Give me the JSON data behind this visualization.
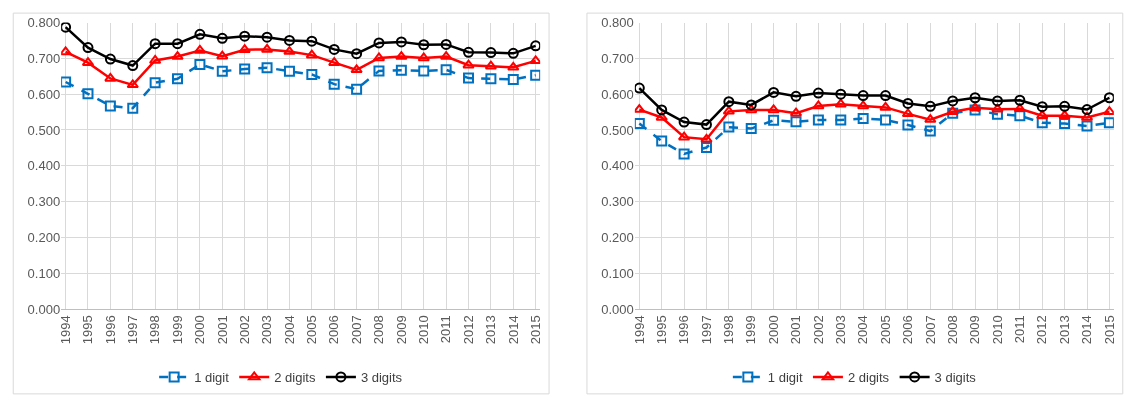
{
  "chart_data": [
    {
      "type": "line",
      "categories": [
        "1994",
        "1995",
        "1996",
        "1997",
        "1998",
        "1999",
        "2000",
        "2001",
        "2002",
        "2003",
        "2004",
        "2005",
        "2006",
        "2007",
        "2008",
        "2009",
        "2010",
        "2011",
        "2012",
        "2013",
        "2014",
        "2015"
      ],
      "ylim": [
        0,
        0.8
      ],
      "yticks": [
        {
          "value": 0,
          "label": "0.000"
        },
        {
          "value": 0.1,
          "label": "0.100"
        },
        {
          "value": 0.2,
          "label": "0.200"
        },
        {
          "value": 0.3,
          "label": "0.300"
        },
        {
          "value": 0.4,
          "label": "0.400"
        },
        {
          "value": 0.5,
          "label": "0.500"
        },
        {
          "value": 0.6,
          "label": "0.600"
        },
        {
          "value": 0.7,
          "label": "0.700"
        },
        {
          "value": 0.8,
          "label": "0.800"
        }
      ],
      "grid": true,
      "legend": "bottom",
      "series": [
        {
          "name": "1 digit",
          "color": "#0070c0",
          "marker": "square",
          "line_style": "dashed",
          "values": [
            0.634,
            0.601,
            0.567,
            0.561,
            0.632,
            0.643,
            0.683,
            0.664,
            0.67,
            0.674,
            0.664,
            0.655,
            0.628,
            0.614,
            0.665,
            0.667,
            0.665,
            0.668,
            0.645,
            0.643,
            0.641,
            0.653
          ]
        },
        {
          "name": "2 digits",
          "color": "#ff0000",
          "marker": "triangle",
          "line_style": "solid",
          "values": [
            0.718,
            0.688,
            0.644,
            0.626,
            0.694,
            0.705,
            0.722,
            0.706,
            0.724,
            0.725,
            0.719,
            0.709,
            0.688,
            0.668,
            0.701,
            0.705,
            0.701,
            0.705,
            0.681,
            0.678,
            0.675,
            0.693
          ]
        },
        {
          "name": "3 digits",
          "color": "#000000",
          "marker": "circle",
          "line_style": "solid",
          "values": [
            0.787,
            0.73,
            0.698,
            0.68,
            0.741,
            0.741,
            0.767,
            0.756,
            0.762,
            0.759,
            0.75,
            0.748,
            0.725,
            0.713,
            0.743,
            0.746,
            0.738,
            0.739,
            0.717,
            0.716,
            0.714,
            0.735
          ]
        }
      ]
    },
    {
      "type": "line",
      "categories": [
        "1994",
        "1995",
        "1996",
        "1997",
        "1998",
        "1999",
        "2000",
        "2001",
        "2002",
        "2003",
        "2004",
        "2005",
        "2006",
        "2007",
        "2008",
        "2009",
        "2010",
        "2011",
        "2012",
        "2013",
        "2014",
        "2015"
      ],
      "ylim": [
        0,
        0.8
      ],
      "yticks": [
        {
          "value": 0,
          "label": "0.000"
        },
        {
          "value": 0.1,
          "label": "0.100"
        },
        {
          "value": 0.2,
          "label": "0.200"
        },
        {
          "value": 0.3,
          "label": "0.300"
        },
        {
          "value": 0.4,
          "label": "0.400"
        },
        {
          "value": 0.5,
          "label": "0.500"
        },
        {
          "value": 0.6,
          "label": "0.600"
        },
        {
          "value": 0.7,
          "label": "0.700"
        },
        {
          "value": 0.8,
          "label": "0.800"
        }
      ],
      "grid": true,
      "legend": "bottom",
      "series": [
        {
          "name": "1 digit",
          "color": "#0070c0",
          "marker": "square",
          "line_style": "dashed",
          "values": [
            0.518,
            0.469,
            0.433,
            0.451,
            0.508,
            0.504,
            0.527,
            0.523,
            0.528,
            0.528,
            0.532,
            0.528,
            0.514,
            0.497,
            0.547,
            0.556,
            0.544,
            0.54,
            0.52,
            0.518,
            0.511,
            0.52
          ]
        },
        {
          "name": "2 digits",
          "color": "#ff0000",
          "marker": "triangle",
          "line_style": "solid",
          "values": [
            0.557,
            0.535,
            0.48,
            0.474,
            0.552,
            0.556,
            0.556,
            0.547,
            0.567,
            0.572,
            0.567,
            0.563,
            0.545,
            0.529,
            0.551,
            0.562,
            0.558,
            0.559,
            0.54,
            0.54,
            0.535,
            0.551
          ]
        },
        {
          "name": "3 digits",
          "color": "#000000",
          "marker": "circle",
          "line_style": "solid",
          "values": [
            0.617,
            0.556,
            0.522,
            0.515,
            0.579,
            0.57,
            0.605,
            0.594,
            0.603,
            0.6,
            0.596,
            0.596,
            0.574,
            0.566,
            0.581,
            0.59,
            0.581,
            0.583,
            0.565,
            0.566,
            0.557,
            0.59
          ]
        }
      ]
    }
  ]
}
